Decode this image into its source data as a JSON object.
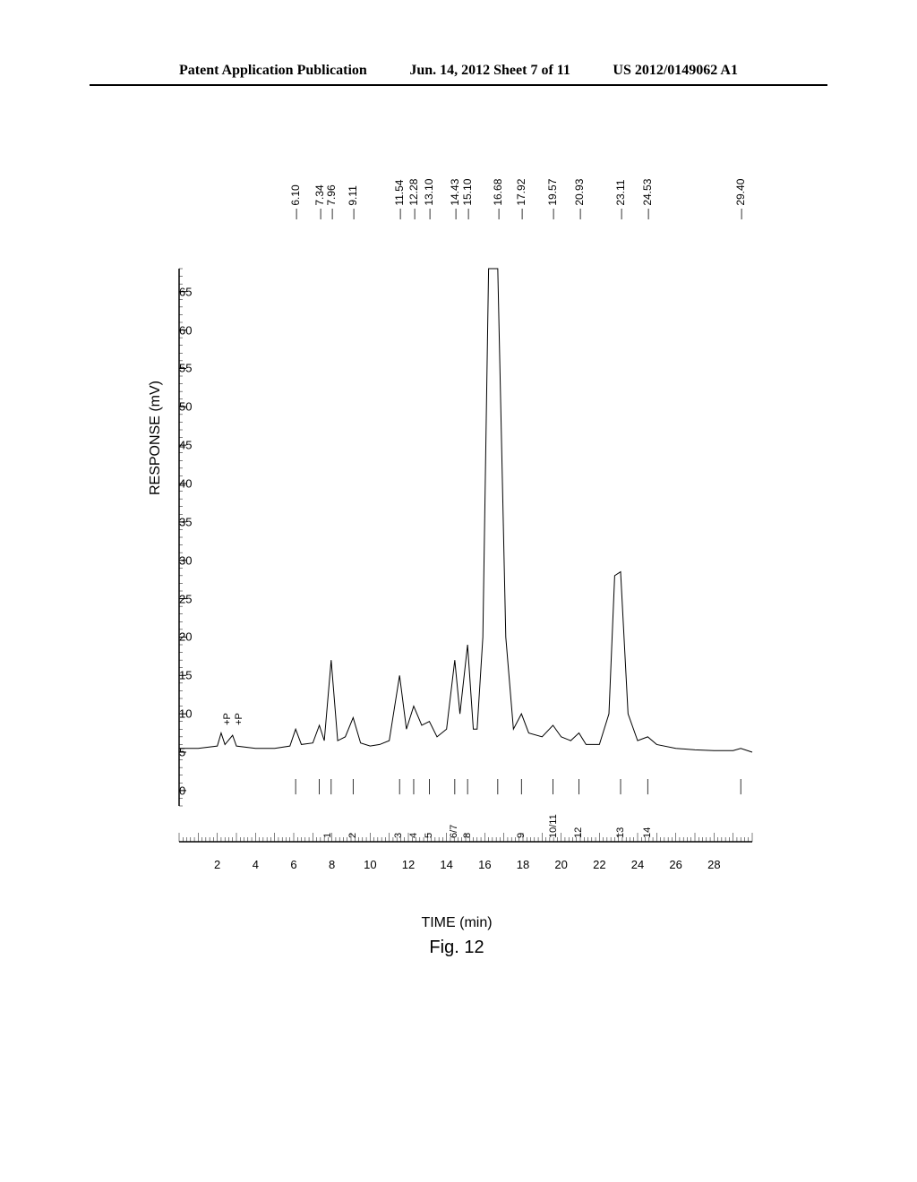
{
  "header": {
    "left": "Patent Application Publication",
    "center": "Jun. 14, 2012  Sheet 7 of 11",
    "right": "US 2012/0149062 A1"
  },
  "chart": {
    "type": "line",
    "title": "Fig. 12",
    "xlabel": "TIME (min)",
    "ylabel": "RESPONSE (mV)",
    "xlim": [
      0,
      30
    ],
    "ylim": [
      -2,
      68
    ],
    "xtick_step": 2,
    "ytick_step": 5,
    "xticks": [
      2,
      4,
      6,
      8,
      10,
      12,
      14,
      16,
      18,
      20,
      22,
      24,
      26,
      28
    ],
    "yticks": [
      0,
      5,
      10,
      15,
      20,
      25,
      30,
      35,
      40,
      45,
      50,
      55,
      60,
      65
    ],
    "background_color": "#ffffff",
    "line_color": "#000000",
    "line_width": 1,
    "peak_labels": [
      {
        "x": 6.1,
        "label": "6.10"
      },
      {
        "x": 7.34,
        "label": "7.34"
      },
      {
        "x": 7.96,
        "label": "7.96"
      },
      {
        "x": 9.11,
        "label": "9.11"
      },
      {
        "x": 11.54,
        "label": "11.54"
      },
      {
        "x": 12.28,
        "label": "12.28"
      },
      {
        "x": 13.1,
        "label": "13.10"
      },
      {
        "x": 14.43,
        "label": "14.43"
      },
      {
        "x": 15.1,
        "label": "15.10"
      },
      {
        "x": 16.68,
        "label": "16.68"
      },
      {
        "x": 17.92,
        "label": "17.92"
      },
      {
        "x": 19.57,
        "label": "19.57"
      },
      {
        "x": 20.93,
        "label": "20.93"
      },
      {
        "x": 23.11,
        "label": "23.11"
      },
      {
        "x": 24.53,
        "label": "24.53"
      },
      {
        "x": 29.4,
        "label": "29.40"
      }
    ],
    "pump_markers": [
      {
        "x": 2.2,
        "label": "+P"
      },
      {
        "x": 2.8,
        "label": "+P"
      }
    ],
    "sub_labels": [
      {
        "x": 7.8,
        "label": "1"
      },
      {
        "x": 9.1,
        "label": "2"
      },
      {
        "x": 11.5,
        "label": "3"
      },
      {
        "x": 12.3,
        "label": "4"
      },
      {
        "x": 13.1,
        "label": "5"
      },
      {
        "x": 14.4,
        "label": "6/7"
      },
      {
        "x": 15.1,
        "label": "8"
      },
      {
        "x": 17.9,
        "label": "9"
      },
      {
        "x": 19.6,
        "label": "10/11"
      },
      {
        "x": 20.9,
        "label": "12"
      },
      {
        "x": 23.1,
        "label": "13"
      },
      {
        "x": 24.5,
        "label": "14"
      }
    ],
    "chromatogram_points": [
      {
        "x": 0,
        "y": 5.5
      },
      {
        "x": 1,
        "y": 5.5
      },
      {
        "x": 2,
        "y": 5.8
      },
      {
        "x": 2.2,
        "y": 7.5
      },
      {
        "x": 2.4,
        "y": 6
      },
      {
        "x": 2.8,
        "y": 7.2
      },
      {
        "x": 3,
        "y": 5.8
      },
      {
        "x": 4,
        "y": 5.5
      },
      {
        "x": 5,
        "y": 5.5
      },
      {
        "x": 5.8,
        "y": 5.8
      },
      {
        "x": 6.1,
        "y": 8
      },
      {
        "x": 6.4,
        "y": 6
      },
      {
        "x": 7,
        "y": 6.2
      },
      {
        "x": 7.34,
        "y": 8.5
      },
      {
        "x": 7.6,
        "y": 6.5
      },
      {
        "x": 7.96,
        "y": 17
      },
      {
        "x": 8.3,
        "y": 6.5
      },
      {
        "x": 8.7,
        "y": 7
      },
      {
        "x": 9.11,
        "y": 9.5
      },
      {
        "x": 9.5,
        "y": 6.2
      },
      {
        "x": 10,
        "y": 5.8
      },
      {
        "x": 10.5,
        "y": 6
      },
      {
        "x": 11,
        "y": 6.5
      },
      {
        "x": 11.54,
        "y": 15
      },
      {
        "x": 11.9,
        "y": 8
      },
      {
        "x": 12.28,
        "y": 11
      },
      {
        "x": 12.7,
        "y": 8.5
      },
      {
        "x": 13.1,
        "y": 9
      },
      {
        "x": 13.5,
        "y": 7
      },
      {
        "x": 14,
        "y": 8
      },
      {
        "x": 14.43,
        "y": 17
      },
      {
        "x": 14.7,
        "y": 10
      },
      {
        "x": 15.1,
        "y": 19
      },
      {
        "x": 15.4,
        "y": 8
      },
      {
        "x": 15.6,
        "y": 8
      },
      {
        "x": 15.9,
        "y": 20
      },
      {
        "x": 16.2,
        "y": 68
      },
      {
        "x": 16.68,
        "y": 68
      },
      {
        "x": 17.1,
        "y": 20
      },
      {
        "x": 17.5,
        "y": 8
      },
      {
        "x": 17.92,
        "y": 10
      },
      {
        "x": 18.3,
        "y": 7.5
      },
      {
        "x": 19,
        "y": 7
      },
      {
        "x": 19.57,
        "y": 8.5
      },
      {
        "x": 20,
        "y": 7
      },
      {
        "x": 20.5,
        "y": 6.5
      },
      {
        "x": 20.93,
        "y": 7.5
      },
      {
        "x": 21.3,
        "y": 6
      },
      {
        "x": 22,
        "y": 6
      },
      {
        "x": 22.5,
        "y": 10
      },
      {
        "x": 22.8,
        "y": 28
      },
      {
        "x": 23.11,
        "y": 28.5
      },
      {
        "x": 23.5,
        "y": 10
      },
      {
        "x": 24,
        "y": 6.5
      },
      {
        "x": 24.53,
        "y": 7
      },
      {
        "x": 25,
        "y": 6
      },
      {
        "x": 26,
        "y": 5.5
      },
      {
        "x": 27,
        "y": 5.3
      },
      {
        "x": 28,
        "y": 5.2
      },
      {
        "x": 29,
        "y": 5.2
      },
      {
        "x": 29.4,
        "y": 5.5
      },
      {
        "x": 30,
        "y": 5
      }
    ]
  }
}
